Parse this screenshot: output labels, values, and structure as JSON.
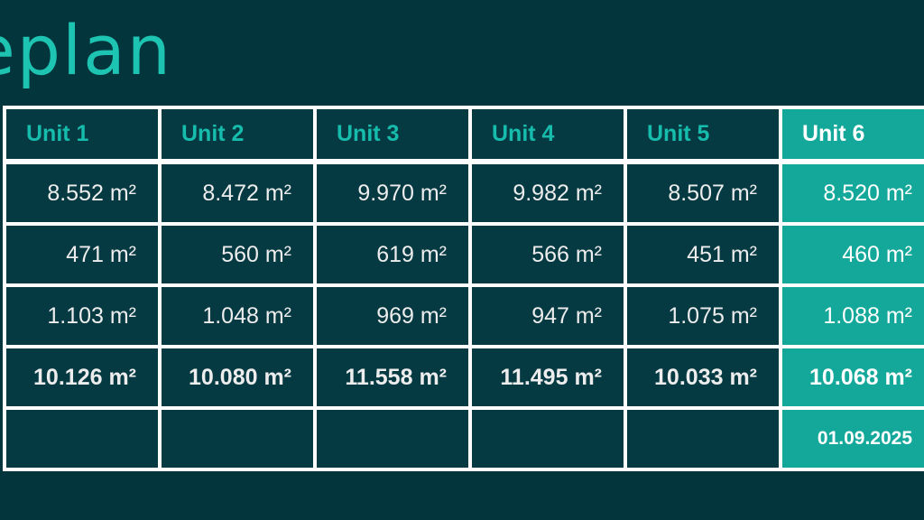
{
  "slide": {
    "title_visible": "eplan",
    "colors": {
      "background": "#03353C",
      "cell_background": "#063A42",
      "accent_teal": "#14A89B",
      "title_teal": "#1EC4B2",
      "header_teal": "#16BCAC",
      "grid_white": "#FFFFFF",
      "value_text": "#EDEDED"
    }
  },
  "table": {
    "columns": [
      {
        "label": "Unit 1",
        "highlighted": false
      },
      {
        "label": "Unit 2",
        "highlighted": false
      },
      {
        "label": "Unit 3",
        "highlighted": false
      },
      {
        "label": "Unit 4",
        "highlighted": false
      },
      {
        "label": "Unit 5",
        "highlighted": false
      },
      {
        "label": "Unit 6",
        "highlighted": true
      }
    ],
    "rows": [
      {
        "kind": "area",
        "values": [
          "8.552 m²",
          "8.472 m²",
          "9.970 m²",
          "9.982 m²",
          "8.507 m²",
          "8.520 m²"
        ]
      },
      {
        "kind": "area",
        "values": [
          "471 m²",
          "560 m²",
          "619 m²",
          "566 m²",
          "451 m²",
          "460 m²"
        ]
      },
      {
        "kind": "area",
        "values": [
          "1.103 m²",
          "1.048 m²",
          "969 m²",
          "947 m²",
          "1.075 m²",
          "1.088 m²"
        ]
      },
      {
        "kind": "total",
        "values": [
          "10.126 m²",
          "10.080 m²",
          "11.558 m²",
          "11.495 m²",
          "10.033 m²",
          "10.068 m²"
        ]
      },
      {
        "kind": "date",
        "values": [
          "",
          "",
          "",
          "",
          "",
          "01.09.2025"
        ]
      }
    ]
  }
}
